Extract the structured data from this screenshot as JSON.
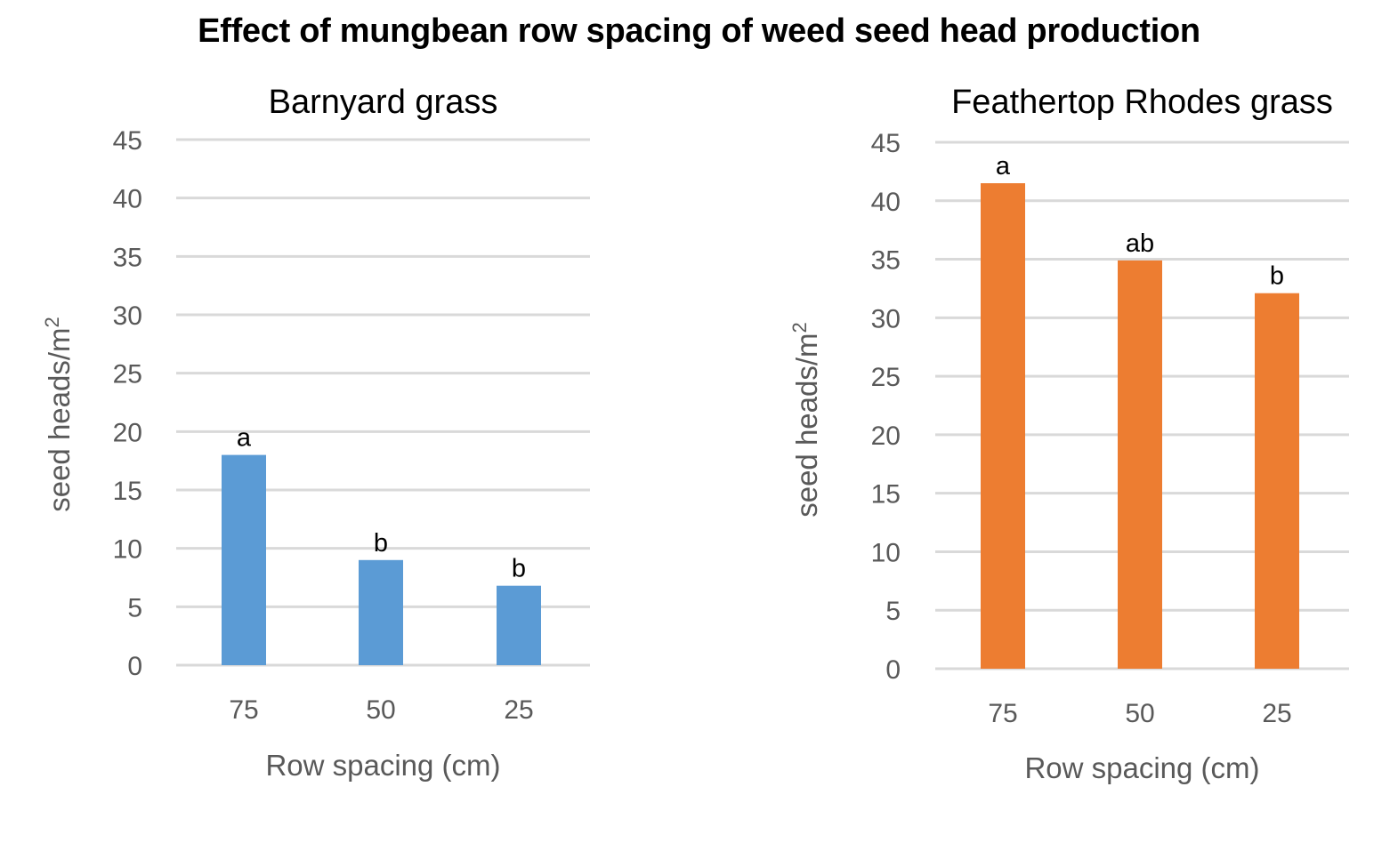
{
  "title": "Effect of mungbean row spacing of weed seed head production",
  "chart_data": [
    {
      "type": "bar",
      "title": "Barnyard grass",
      "xlabel": "Row spacing  (cm)",
      "ylabel": "seed heads/m",
      "ylabel_sup": "2",
      "categories": [
        "75",
        "50",
        "25"
      ],
      "values": [
        18,
        9,
        6.8
      ],
      "data_labels": [
        "a",
        "b",
        "b"
      ],
      "ylim": [
        0,
        45
      ],
      "yticks": [
        "0",
        "5",
        "10",
        "15",
        "20",
        "25",
        "30",
        "35",
        "40",
        "45"
      ],
      "grid": true,
      "color": "#5b9bd5"
    },
    {
      "type": "bar",
      "title": "Feathertop Rhodes grass",
      "xlabel": "Row spacing  (cm)",
      "ylabel": "seed heads/m",
      "ylabel_sup": "2",
      "categories": [
        "75",
        "50",
        "25"
      ],
      "values": [
        41.5,
        34.9,
        32.1
      ],
      "data_labels": [
        "a",
        "ab",
        "b"
      ],
      "ylim": [
        0,
        45
      ],
      "yticks": [
        "0",
        "5",
        "10",
        "15",
        "20",
        "25",
        "30",
        "35",
        "40",
        "45"
      ],
      "grid": true,
      "color": "#ed7d31"
    }
  ]
}
